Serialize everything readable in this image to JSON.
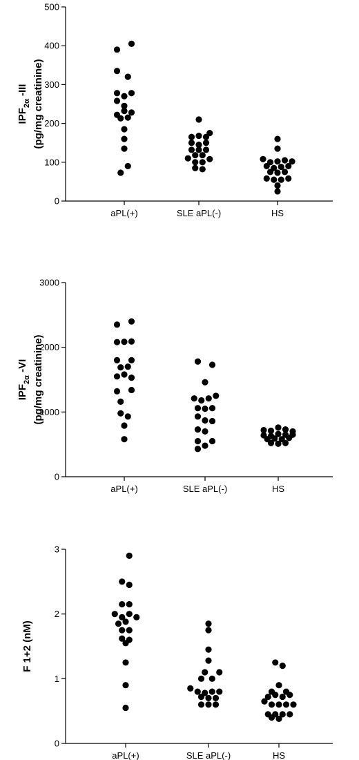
{
  "chart_data": [
    {
      "type": "scatter",
      "ylabel_main": "IPF",
      "ylabel_sub": "2α",
      "ylabel_suffix": " -III",
      "ylabel_unit": "(pg/mg creatinine)",
      "ylim": [
        0,
        500
      ],
      "yticks": [
        0,
        100,
        200,
        300,
        400,
        500
      ],
      "ytick_labels": [
        "0",
        "100",
        "200",
        "300",
        "400",
        "500"
      ],
      "categories": [
        "aPL(+)",
        "SLE aPL(-)",
        "HS"
      ],
      "series": [
        {
          "category": "aPL(+)",
          "points": [
            {
              "x": -1,
              "y": 390
            },
            {
              "x": 1,
              "y": 405
            },
            {
              "x": -1,
              "y": 335
            },
            {
              "x": 0.5,
              "y": 320
            },
            {
              "x": -1,
              "y": 278
            },
            {
              "x": 0,
              "y": 270
            },
            {
              "x": 1,
              "y": 278
            },
            {
              "x": -1,
              "y": 258
            },
            {
              "x": 0,
              "y": 245
            },
            {
              "x": -1,
              "y": 222
            },
            {
              "x": 0,
              "y": 232
            },
            {
              "x": 1,
              "y": 228
            },
            {
              "x": -0.5,
              "y": 213
            },
            {
              "x": 0.5,
              "y": 215
            },
            {
              "x": 0,
              "y": 185
            },
            {
              "x": 0,
              "y": 160
            },
            {
              "x": 0,
              "y": 135
            },
            {
              "x": 0.5,
              "y": 90
            },
            {
              "x": -0.5,
              "y": 73
            }
          ]
        },
        {
          "category": "SLE aPL(-)",
          "points": [
            {
              "x": 0,
              "y": 210
            },
            {
              "x": -1,
              "y": 165
            },
            {
              "x": 0,
              "y": 168
            },
            {
              "x": 1,
              "y": 165
            },
            {
              "x": 1.5,
              "y": 175
            },
            {
              "x": -1,
              "y": 150
            },
            {
              "x": 0,
              "y": 145
            },
            {
              "x": 1,
              "y": 150
            },
            {
              "x": -1,
              "y": 132
            },
            {
              "x": 0,
              "y": 132
            },
            {
              "x": 1,
              "y": 132
            },
            {
              "x": -0.5,
              "y": 118
            },
            {
              "x": 0.5,
              "y": 118
            },
            {
              "x": -1.5,
              "y": 110
            },
            {
              "x": -0.5,
              "y": 100
            },
            {
              "x": 0.5,
              "y": 100
            },
            {
              "x": 1.5,
              "y": 108
            },
            {
              "x": -0.5,
              "y": 85
            },
            {
              "x": 0.5,
              "y": 82
            }
          ]
        },
        {
          "category": "HS",
          "points": [
            {
              "x": 0,
              "y": 160
            },
            {
              "x": 0,
              "y": 135
            },
            {
              "x": -2,
              "y": 108
            },
            {
              "x": -1,
              "y": 100
            },
            {
              "x": 0,
              "y": 102
            },
            {
              "x": 1,
              "y": 105
            },
            {
              "x": 2,
              "y": 102
            },
            {
              "x": -1.5,
              "y": 90
            },
            {
              "x": -0.5,
              "y": 85
            },
            {
              "x": 0.5,
              "y": 88
            },
            {
              "x": 1.5,
              "y": 90
            },
            {
              "x": -1,
              "y": 75
            },
            {
              "x": 0,
              "y": 73
            },
            {
              "x": 1,
              "y": 75
            },
            {
              "x": -1.5,
              "y": 58
            },
            {
              "x": -0.5,
              "y": 55
            },
            {
              "x": 0.5,
              "y": 55
            },
            {
              "x": 1.5,
              "y": 58
            },
            {
              "x": 0,
              "y": 40
            },
            {
              "x": 0,
              "y": 25
            }
          ]
        }
      ]
    },
    {
      "type": "scatter",
      "ylabel_main": "IPF",
      "ylabel_sub": "2α",
      "ylabel_suffix": " -VI",
      "ylabel_unit": "(pg/mg creatinine)",
      "ylim": [
        0,
        3000
      ],
      "yticks": [
        0,
        1000,
        2000,
        3000
      ],
      "ytick_labels": [
        "0",
        "1000",
        "2000",
        "3000"
      ],
      "categories": [
        "aPL(+)",
        "SLE aPL(-)",
        "HS"
      ],
      "series": [
        {
          "category": "aPL(+)",
          "points": [
            {
              "x": -1,
              "y": 2350
            },
            {
              "x": 1,
              "y": 2400
            },
            {
              "x": -1,
              "y": 2080
            },
            {
              "x": 0,
              "y": 2085
            },
            {
              "x": 1,
              "y": 2090
            },
            {
              "x": -1,
              "y": 1800
            },
            {
              "x": 1,
              "y": 1800
            },
            {
              "x": -0.5,
              "y": 1690
            },
            {
              "x": 0.5,
              "y": 1700
            },
            {
              "x": -1,
              "y": 1550
            },
            {
              "x": 0,
              "y": 1580
            },
            {
              "x": 1,
              "y": 1530
            },
            {
              "x": -1,
              "y": 1320
            },
            {
              "x": 1,
              "y": 1340
            },
            {
              "x": -0.5,
              "y": 1160
            },
            {
              "x": -0.5,
              "y": 980
            },
            {
              "x": 0.5,
              "y": 930
            },
            {
              "x": 0,
              "y": 790
            },
            {
              "x": 0,
              "y": 580
            }
          ]
        },
        {
          "category": "SLE aPL(-)",
          "points": [
            {
              "x": -1,
              "y": 1780
            },
            {
              "x": 1,
              "y": 1730
            },
            {
              "x": 0,
              "y": 1460
            },
            {
              "x": -1.5,
              "y": 1210
            },
            {
              "x": -0.5,
              "y": 1180
            },
            {
              "x": 0.5,
              "y": 1210
            },
            {
              "x": 1.5,
              "y": 1250
            },
            {
              "x": -1,
              "y": 1060
            },
            {
              "x": 0,
              "y": 1050
            },
            {
              "x": 1,
              "y": 1060
            },
            {
              "x": -1,
              "y": 930
            },
            {
              "x": 0,
              "y": 870
            },
            {
              "x": 1,
              "y": 860
            },
            {
              "x": -1,
              "y": 730
            },
            {
              "x": 0,
              "y": 700
            },
            {
              "x": -1,
              "y": 550
            },
            {
              "x": 0,
              "y": 480
            },
            {
              "x": 1,
              "y": 550
            },
            {
              "x": -1,
              "y": 430
            }
          ]
        },
        {
          "category": "HS",
          "points": [
            {
              "x": -2,
              "y": 720
            },
            {
              "x": -1,
              "y": 710
            },
            {
              "x": 0,
              "y": 760
            },
            {
              "x": 1,
              "y": 730
            },
            {
              "x": 2,
              "y": 700
            },
            {
              "x": -2,
              "y": 640
            },
            {
              "x": -1,
              "y": 630
            },
            {
              "x": 0,
              "y": 660
            },
            {
              "x": 1,
              "y": 650
            },
            {
              "x": 2,
              "y": 650
            },
            {
              "x": -1.5,
              "y": 580
            },
            {
              "x": -0.5,
              "y": 590
            },
            {
              "x": 0.5,
              "y": 580
            },
            {
              "x": 1.5,
              "y": 600
            },
            {
              "x": -1,
              "y": 520
            },
            {
              "x": 0,
              "y": 510
            },
            {
              "x": 1,
              "y": 520
            }
          ]
        }
      ]
    },
    {
      "type": "scatter",
      "ylabel_main": "F 1+2 (nM)",
      "ylabel_sub": "",
      "ylabel_suffix": "",
      "ylabel_unit": "",
      "ylim": [
        0,
        3
      ],
      "yticks": [
        0,
        1,
        2,
        3
      ],
      "ytick_labels": [
        "0",
        "1",
        "2",
        "3"
      ],
      "categories": [
        "aPL(+)",
        "SLE aPL(-)",
        "HS"
      ],
      "series": [
        {
          "category": "aPL(+)",
          "points": [
            {
              "x": 0.5,
              "y": 2.9
            },
            {
              "x": -0.5,
              "y": 2.5
            },
            {
              "x": 0.5,
              "y": 2.45
            },
            {
              "x": -0.5,
              "y": 2.15
            },
            {
              "x": 0.5,
              "y": 2.15
            },
            {
              "x": -1.5,
              "y": 2.0
            },
            {
              "x": -0.5,
              "y": 1.95
            },
            {
              "x": 0.5,
              "y": 2.0
            },
            {
              "x": 1.5,
              "y": 1.95
            },
            {
              "x": -1,
              "y": 1.85
            },
            {
              "x": 0,
              "y": 1.88
            },
            {
              "x": -0.5,
              "y": 1.75
            },
            {
              "x": 0.5,
              "y": 1.75
            },
            {
              "x": -0.5,
              "y": 1.62
            },
            {
              "x": 0.5,
              "y": 1.6
            },
            {
              "x": 0,
              "y": 1.55
            },
            {
              "x": 0,
              "y": 1.25
            },
            {
              "x": 0,
              "y": 0.9
            },
            {
              "x": 0,
              "y": 0.55
            }
          ]
        },
        {
          "category": "SLE aPL(-)",
          "points": [
            {
              "x": 0,
              "y": 1.85
            },
            {
              "x": 0,
              "y": 1.75
            },
            {
              "x": 0,
              "y": 1.45
            },
            {
              "x": 0,
              "y": 1.28
            },
            {
              "x": -0.5,
              "y": 1.1
            },
            {
              "x": 1.5,
              "y": 1.1
            },
            {
              "x": -1,
              "y": 1.0
            },
            {
              "x": 0.5,
              "y": 1.0
            },
            {
              "x": -2.5,
              "y": 0.85
            },
            {
              "x": -1.5,
              "y": 0.8
            },
            {
              "x": -0.5,
              "y": 0.78
            },
            {
              "x": 0.5,
              "y": 0.8
            },
            {
              "x": 1.5,
              "y": 0.8
            },
            {
              "x": -1,
              "y": 0.72
            },
            {
              "x": 0,
              "y": 0.7
            },
            {
              "x": 1,
              "y": 0.7
            },
            {
              "x": -1,
              "y": 0.6
            },
            {
              "x": 0,
              "y": 0.6
            },
            {
              "x": 1,
              "y": 0.6
            }
          ]
        },
        {
          "category": "HS",
          "points": [
            {
              "x": -0.5,
              "y": 1.25
            },
            {
              "x": 0.5,
              "y": 1.2
            },
            {
              "x": 0,
              "y": 0.9
            },
            {
              "x": -1,
              "y": 0.8
            },
            {
              "x": 1,
              "y": 0.8
            },
            {
              "x": -1.5,
              "y": 0.72
            },
            {
              "x": -0.5,
              "y": 0.75
            },
            {
              "x": 0.5,
              "y": 0.72
            },
            {
              "x": 1.5,
              "y": 0.75
            },
            {
              "x": -2,
              "y": 0.65
            },
            {
              "x": -1,
              "y": 0.6
            },
            {
              "x": 0,
              "y": 0.6
            },
            {
              "x": 1,
              "y": 0.6
            },
            {
              "x": 2,
              "y": 0.6
            },
            {
              "x": -1.5,
              "y": 0.45
            },
            {
              "x": -0.5,
              "y": 0.45
            },
            {
              "x": 0.5,
              "y": 0.45
            },
            {
              "x": 1.5,
              "y": 0.45
            },
            {
              "x": -1,
              "y": 0.4
            },
            {
              "x": 0,
              "y": 0.38
            }
          ]
        }
      ]
    }
  ]
}
